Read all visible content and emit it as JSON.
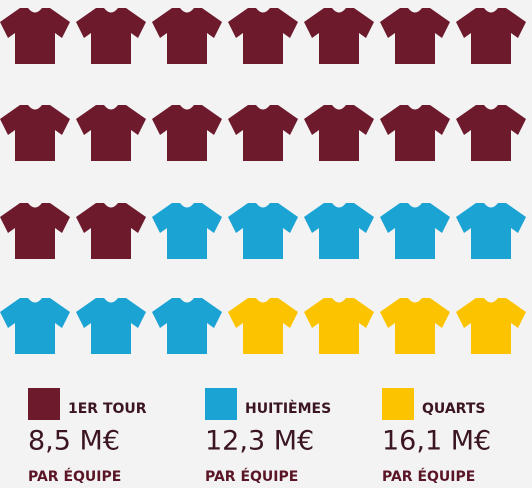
{
  "chart_data": {
    "type": "pictogram",
    "categories": [
      "1ER TOUR",
      "HUITIÈMES",
      "QUARTS"
    ],
    "counts": [
      16,
      8,
      4
    ],
    "colors": [
      "#6d1a2d",
      "#1ba3d4",
      "#fcc300"
    ],
    "values": [
      8.5,
      12.3,
      16.1
    ],
    "value_labels": [
      "8,5 M€",
      "12,3 M€",
      "16,1 M€"
    ],
    "note": "PAR ÉQUIPE"
  }
}
